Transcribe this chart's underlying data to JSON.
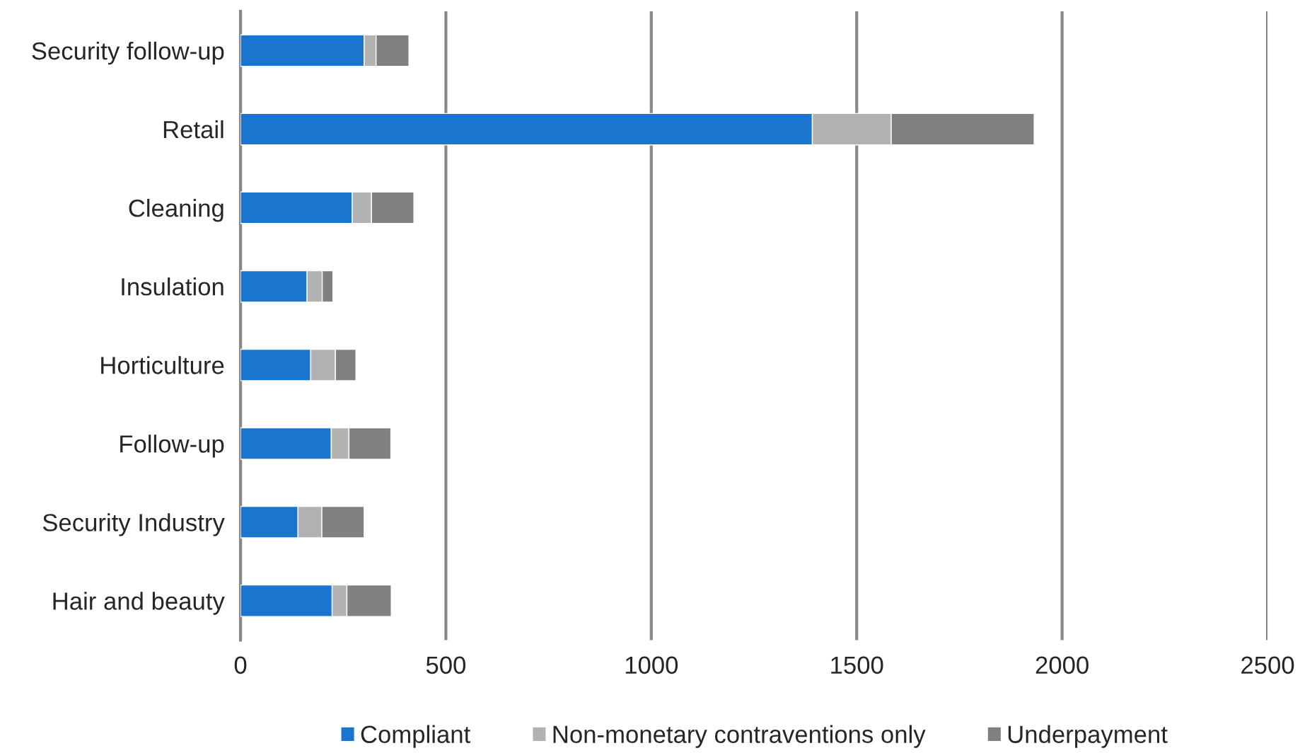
{
  "chart_data": {
    "type": "bar",
    "orientation": "horizontal",
    "stacked": true,
    "categories": [
      "Security follow-up",
      "Retail",
      "Cleaning",
      "Insulation",
      "Horticulture",
      "Follow-up",
      "Security Industry",
      "Hair and beauty"
    ],
    "series": [
      {
        "name": "Compliant",
        "color": "#1a75cf",
        "values": [
          301,
          1392,
          272,
          162,
          171,
          221,
          140,
          223
        ]
      },
      {
        "name": "Non-monetary contraventions only",
        "color": "#b2b2b2",
        "values": [
          29,
          192,
          47,
          37,
          60,
          43,
          58,
          36
        ]
      },
      {
        "name": "Underpayment",
        "color": "#808080",
        "values": [
          80,
          348,
          103,
          26,
          50,
          102,
          103,
          108
        ]
      }
    ],
    "xlim": [
      0,
      2500
    ],
    "xticks": [
      0,
      500,
      1000,
      1500,
      2000,
      2500
    ],
    "grid": "x",
    "legend": "bottom"
  }
}
